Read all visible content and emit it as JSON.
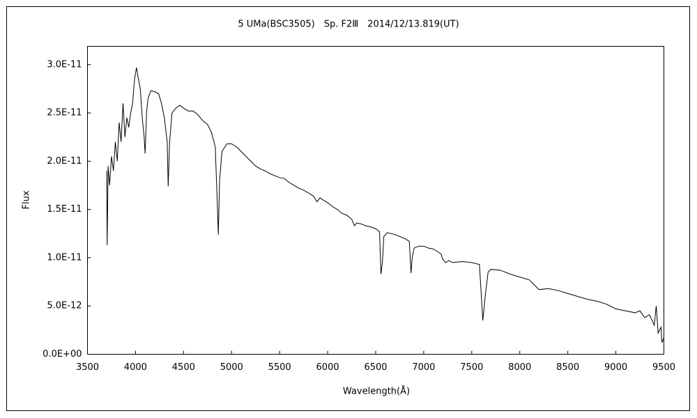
{
  "chart_data": {
    "type": "line",
    "title": "5 UMa(BSC3505)　Sp. F2Ⅲ　2014/12/13.819(UT)",
    "x_label": "Wavelength(Å)",
    "y_label": "Flux",
    "xlim": [
      3500,
      9500
    ],
    "xticks": [
      3500,
      4000,
      4500,
      5000,
      5500,
      6000,
      6500,
      7000,
      7500,
      8000,
      8500,
      9000,
      9500
    ],
    "ylim": [
      0,
      3.19e-11
    ],
    "yticks": [
      {
        "value": 0,
        "label": "0.0E+00"
      },
      {
        "value": 5e-12,
        "label": "5.0E-12"
      },
      {
        "value": 1e-11,
        "label": "1.0E-11"
      },
      {
        "value": 1.5e-11,
        "label": "1.5E-11"
      },
      {
        "value": 2e-11,
        "label": "2.0E-11"
      },
      {
        "value": 2.5e-11,
        "label": "2.5E-11"
      },
      {
        "value": 3e-11,
        "label": "3.0E-11"
      }
    ],
    "grid": false,
    "series": [
      {
        "color": "#000000",
        "x": [
          3700,
          3705,
          3715,
          3730,
          3750,
          3770,
          3790,
          3810,
          3830,
          3850,
          3870,
          3890,
          3910,
          3930,
          3950,
          3970,
          3990,
          4010,
          4030,
          4050,
          4070,
          4090,
          4100,
          4115,
          4130,
          4160,
          4200,
          4240,
          4270,
          4300,
          4330,
          4340,
          4355,
          4380,
          4420,
          4460,
          4500,
          4550,
          4600,
          4650,
          4700,
          4750,
          4790,
          4830,
          4850,
          4862,
          4875,
          4900,
          4950,
          5000,
          5050,
          5100,
          5150,
          5200,
          5250,
          5300,
          5350,
          5400,
          5450,
          5500,
          5550,
          5600,
          5650,
          5700,
          5750,
          5800,
          5850,
          5890,
          5920,
          5950,
          6000,
          6050,
          6100,
          6150,
          6200,
          6250,
          6280,
          6300,
          6350,
          6400,
          6450,
          6500,
          6540,
          6555,
          6570,
          6585,
          6620,
          6700,
          6800,
          6850,
          6868,
          6880,
          6900,
          6950,
          7000,
          7050,
          7100,
          7150,
          7180,
          7200,
          7230,
          7260,
          7300,
          7400,
          7500,
          7580,
          7600,
          7615,
          7640,
          7670,
          7700,
          7800,
          7900,
          8000,
          8100,
          8150,
          8200,
          8300,
          8400,
          8500,
          8600,
          8700,
          8800,
          8900,
          9000,
          9100,
          9200,
          9250,
          9300,
          9350,
          9400,
          9420,
          9440,
          9470,
          9480,
          9500
        ],
        "values": [
          1.9e-11,
          1.13e-11,
          1.95e-11,
          1.75e-11,
          2.05e-11,
          1.9e-11,
          2.2e-11,
          2e-11,
          2.4e-11,
          2.2e-11,
          2.6e-11,
          2.25e-11,
          2.45e-11,
          2.35e-11,
          2.5e-11,
          2.6e-11,
          2.85e-11,
          2.97e-11,
          2.85e-11,
          2.75e-11,
          2.45e-11,
          2.25e-11,
          2.08e-11,
          2.5e-11,
          2.65e-11,
          2.73e-11,
          2.72e-11,
          2.7e-11,
          2.6e-11,
          2.45e-11,
          2.2e-11,
          1.74e-11,
          2.2e-11,
          2.5e-11,
          2.55e-11,
          2.58e-11,
          2.55e-11,
          2.52e-11,
          2.52e-11,
          2.48e-11,
          2.42e-11,
          2.38e-11,
          2.3e-11,
          2.15e-11,
          1.6e-11,
          1.24e-11,
          1.8e-11,
          2.1e-11,
          2.18e-11,
          2.18e-11,
          2.15e-11,
          2.1e-11,
          2.05e-11,
          2e-11,
          1.95e-11,
          1.92e-11,
          1.9e-11,
          1.87e-11,
          1.85e-11,
          1.83e-11,
          1.82e-11,
          1.78e-11,
          1.75e-11,
          1.72e-11,
          1.7e-11,
          1.67e-11,
          1.64e-11,
          1.58e-11,
          1.62e-11,
          1.6e-11,
          1.57e-11,
          1.53e-11,
          1.5e-11,
          1.46e-11,
          1.44e-11,
          1.4e-11,
          1.33e-11,
          1.36e-11,
          1.35e-11,
          1.33e-11,
          1.32e-11,
          1.3e-11,
          1.27e-11,
          8.3e-12,
          9.5e-12,
          1.22e-11,
          1.26e-11,
          1.24e-11,
          1.2e-11,
          1.17e-11,
          8.4e-12,
          1e-11,
          1.1e-11,
          1.12e-11,
          1.12e-11,
          1.1e-11,
          1.09e-11,
          1.06e-11,
          1.04e-11,
          9.8e-12,
          9.5e-12,
          9.7e-12,
          9.5e-12,
          9.6e-12,
          9.5e-12,
          9.3e-12,
          6e-12,
          3.5e-12,
          6e-12,
          8.5e-12,
          8.8e-12,
          8.7e-12,
          8.3e-12,
          8e-12,
          7.7e-12,
          7.2e-12,
          6.7e-12,
          6.8e-12,
          6.6e-12,
          6.3e-12,
          6e-12,
          5.7e-12,
          5.5e-12,
          5.2e-12,
          4.7e-12,
          4.5e-12,
          4.3e-12,
          4.5e-12,
          3.8e-12,
          4.1e-12,
          3e-12,
          5e-12,
          2.2e-12,
          2.8e-12,
          1.2e-12,
          1.7e-12
        ]
      }
    ]
  }
}
